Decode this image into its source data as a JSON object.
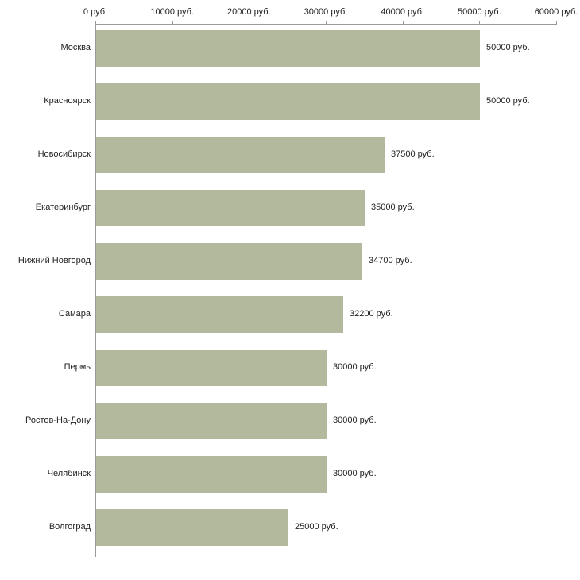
{
  "chart_data": {
    "type": "bar",
    "orientation": "horizontal",
    "title": "",
    "xlabel": "",
    "ylabel": "",
    "grid": false,
    "legend": false,
    "categories": [
      "Москва",
      "Красноярск",
      "Новосибирск",
      "Екатеринбург",
      "Нижний Новгород",
      "Самара",
      "Пермь",
      "Ростов-На-Дону",
      "Челябинск",
      "Волгоград"
    ],
    "values": [
      50000,
      50000,
      37500,
      35000,
      34700,
      32200,
      30000,
      30000,
      30000,
      25000
    ],
    "value_labels": [
      "50000 руб.",
      "50000 руб.",
      "37500 руб.",
      "35000 руб.",
      "34700 руб.",
      "32200 руб.",
      "30000 руб.",
      "30000 руб.",
      "30000 руб.",
      "25000 руб."
    ],
    "x_ticks": [
      0,
      10000,
      20000,
      30000,
      40000,
      50000,
      60000
    ],
    "x_tick_labels": [
      "0 руб.",
      "10000 руб.",
      "20000 руб.",
      "30000 руб.",
      "40000 руб.",
      "50000 руб.",
      "60000 руб."
    ],
    "xlim": [
      0,
      60000
    ],
    "colors": {
      "bar": "#b3b99d",
      "axis": "#9a9a9a",
      "text": "#222222",
      "background": "#ffffff"
    }
  }
}
